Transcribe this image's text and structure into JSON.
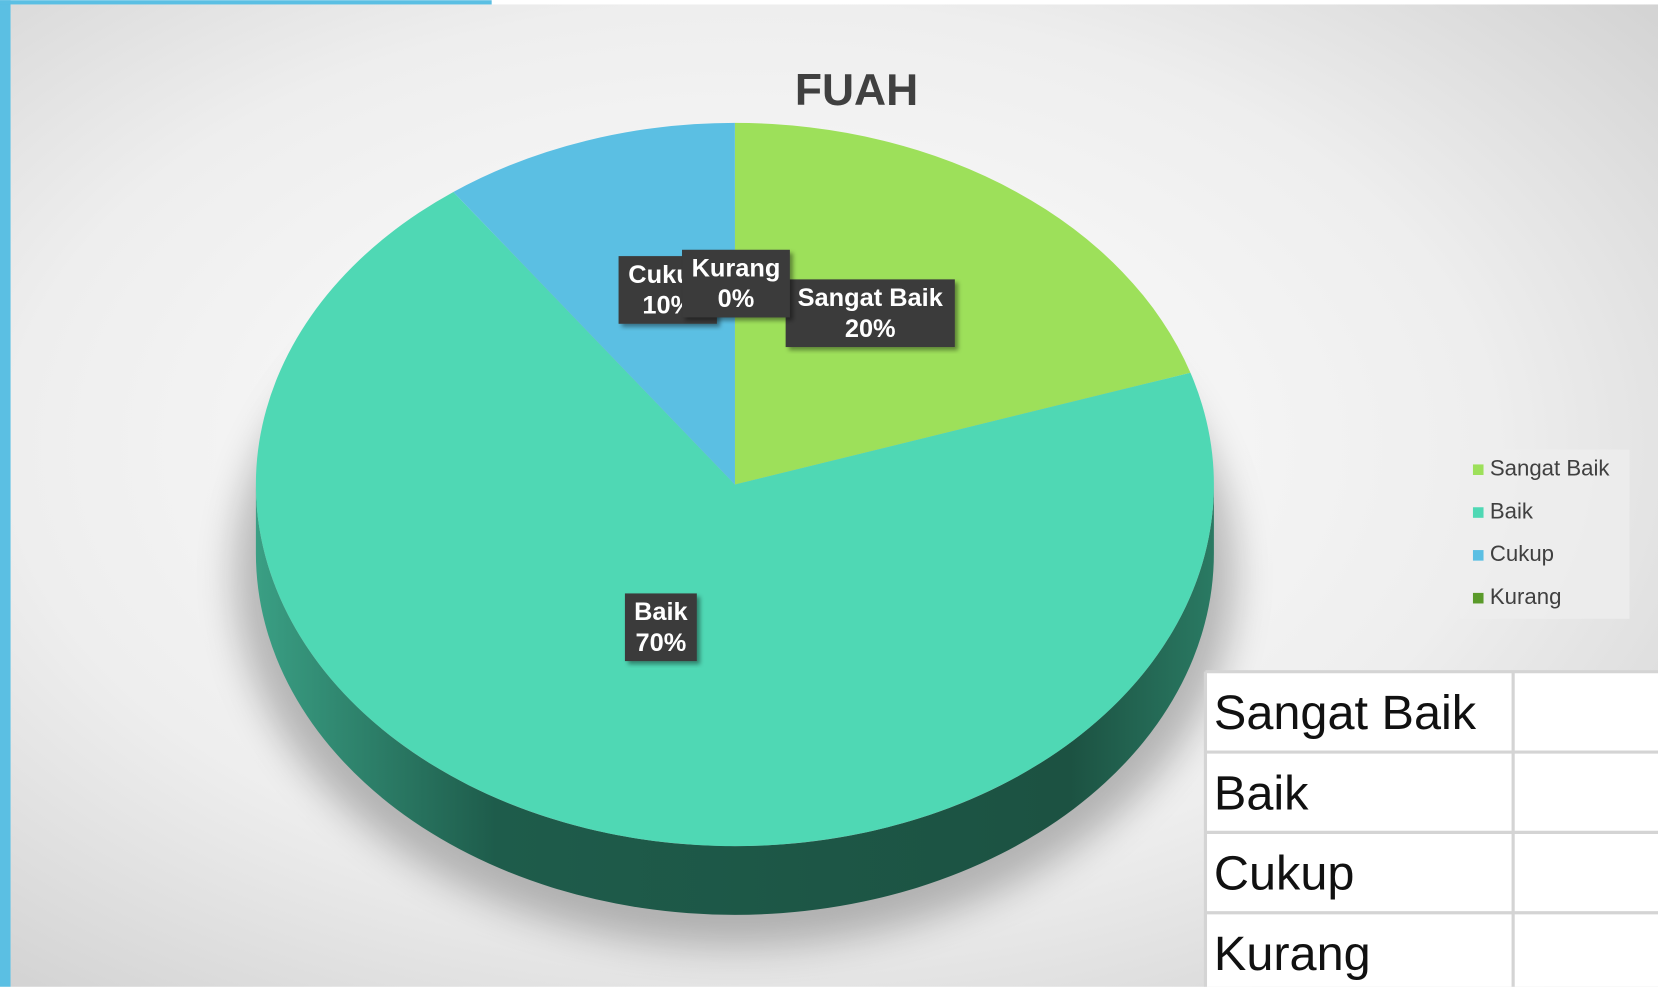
{
  "chart_data": {
    "type": "pie",
    "title": "FUAH",
    "categories": [
      "Sangat Baik",
      "Baik",
      "Cukup",
      "Kurang"
    ],
    "values": [
      20,
      70,
      10,
      0
    ],
    "value_labels": [
      "20%",
      "70%",
      "10%",
      "0%"
    ],
    "colors": [
      "#9de05a",
      "#4fd8b4",
      "#5bbfe3",
      "#5a9a2a"
    ],
    "legend": "right"
  },
  "table": {
    "rows": [
      [
        "Sangat Baik"
      ],
      [
        "Baik"
      ],
      [
        "Cukup"
      ],
      [
        "Kurang"
      ]
    ]
  }
}
